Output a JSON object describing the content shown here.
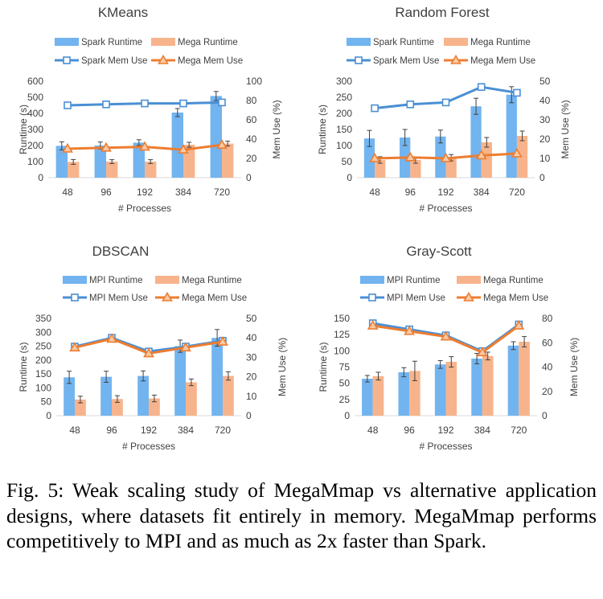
{
  "caption": "Fig. 5: Weak scaling study of MegaMmap vs alternative application designs, where datasets fit entirely in memory. MegaMmap performs competitively to MPI and as much as 2x faster than Spark.",
  "colors": {
    "bar_a": "#72b4ef",
    "bar_b": "#f7b48c",
    "line_a": "#4a8fd4",
    "line_b": "#ed7d31",
    "error": "#404040",
    "axis": "#d9d9d9",
    "text": "#404040"
  },
  "chart_data": [
    {
      "type": "bar",
      "title": "KMeans",
      "xlabel": "# Processes",
      "ylabel": "Runtime (s)",
      "y2label": "Mem Use (%)",
      "categories": [
        "48",
        "96",
        "192",
        "384",
        "720"
      ],
      "ylim": [
        0,
        600
      ],
      "yticks": [
        0,
        100,
        200,
        300,
        400,
        500,
        600
      ],
      "y2lim": [
        0,
        100
      ],
      "y2ticks": [
        0,
        20,
        40,
        60,
        80,
        100
      ],
      "series": [
        {
          "name": "Spark Runtime",
          "kind": "bar",
          "values": [
            198,
            200,
            218,
            405,
            508
          ],
          "errors": [
            25,
            22,
            18,
            25,
            28
          ]
        },
        {
          "name": "Mega Runtime",
          "kind": "bar",
          "values": [
            98,
            100,
            100,
            205,
            212
          ],
          "errors": [
            15,
            12,
            12,
            15,
            15
          ]
        },
        {
          "name": "Spark Mem Use",
          "kind": "line",
          "axis": "right",
          "marker": "square",
          "values": [
            75,
            76,
            77,
            77,
            78
          ]
        },
        {
          "name": "Mega Mem Use",
          "kind": "line",
          "axis": "right",
          "marker": "triangle",
          "values": [
            30,
            31,
            32,
            29,
            34
          ]
        }
      ]
    },
    {
      "type": "bar",
      "title": "Random Forest",
      "xlabel": "# Processes",
      "ylabel": "Runtime (s)",
      "y2label": "Mem Use (%)",
      "categories": [
        "48",
        "96",
        "192",
        "384",
        "720"
      ],
      "ylim": [
        0,
        300
      ],
      "yticks": [
        0,
        50,
        100,
        150,
        200,
        250,
        300
      ],
      "y2lim": [
        0,
        50
      ],
      "y2ticks": [
        0,
        10,
        20,
        30,
        40,
        50
      ],
      "series": [
        {
          "name": "Spark Runtime",
          "kind": "bar",
          "values": [
            122,
            125,
            128,
            222,
            258
          ],
          "errors": [
            25,
            25,
            20,
            25,
            25
          ]
        },
        {
          "name": "Mega Runtime",
          "kind": "bar",
          "values": [
            55,
            55,
            62,
            110,
            130
          ],
          "errors": [
            10,
            10,
            10,
            15,
            15
          ]
        },
        {
          "name": "Spark Mem Use",
          "kind": "line",
          "axis": "right",
          "marker": "square",
          "values": [
            36,
            38,
            39,
            47,
            44
          ]
        },
        {
          "name": "Mega Mem Use",
          "kind": "line",
          "axis": "right",
          "marker": "triangle",
          "values": [
            10,
            10.5,
            10,
            11.5,
            12.5
          ]
        }
      ]
    },
    {
      "type": "bar",
      "title": "DBSCAN",
      "xlabel": "# Processes",
      "ylabel": "Runtime (s)",
      "y2label": "Mem Use (%)",
      "categories": [
        "48",
        "96",
        "192",
        "384",
        "720"
      ],
      "ylim": [
        0,
        350
      ],
      "yticks": [
        0,
        50,
        100,
        150,
        200,
        250,
        300,
        350
      ],
      "y2lim": [
        0,
        50
      ],
      "y2ticks": [
        0,
        10,
        20,
        30,
        40,
        50
      ],
      "series": [
        {
          "name": "MPI Runtime",
          "kind": "bar",
          "values": [
            138,
            140,
            143,
            250,
            280
          ],
          "errors": [
            22,
            20,
            18,
            22,
            30
          ]
        },
        {
          "name": "Mega Runtime",
          "kind": "bar",
          "values": [
            58,
            60,
            62,
            120,
            143
          ],
          "errors": [
            12,
            12,
            12,
            12,
            15
          ]
        },
        {
          "name": "MPI Mem Use",
          "kind": "line",
          "axis": "right",
          "marker": "square",
          "values": [
            35.5,
            40,
            33,
            35.5,
            38.5
          ]
        },
        {
          "name": "Mega Mem Use",
          "kind": "line",
          "axis": "right",
          "marker": "triangle",
          "values": [
            35,
            39.5,
            32,
            35,
            38
          ]
        }
      ]
    },
    {
      "type": "bar",
      "title": "Gray-Scott",
      "xlabel": "# Processes",
      "ylabel": "Runtime (s)",
      "y2label": "Mem Use (%)",
      "categories": [
        "48",
        "96",
        "192",
        "384",
        "720"
      ],
      "ylim": [
        0,
        150
      ],
      "yticks": [
        0,
        25,
        50,
        75,
        100,
        125,
        150
      ],
      "y2lim": [
        0,
        80
      ],
      "y2ticks": [
        0,
        20,
        40,
        60,
        80
      ],
      "series": [
        {
          "name": "MPI Runtime",
          "kind": "bar",
          "values": [
            57,
            67,
            79,
            88,
            108
          ],
          "errors": [
            5,
            7,
            6,
            8,
            6
          ]
        },
        {
          "name": "Mega Runtime",
          "kind": "bar",
          "values": [
            61,
            69,
            83,
            92,
            114
          ],
          "errors": [
            6,
            15,
            8,
            6,
            8
          ]
        },
        {
          "name": "MPI Mem Use",
          "kind": "line",
          "axis": "right",
          "marker": "square",
          "values": [
            76,
            71,
            66,
            53,
            75
          ]
        },
        {
          "name": "Mega Mem Use",
          "kind": "line",
          "axis": "right",
          "marker": "triangle",
          "values": [
            74,
            69.5,
            65,
            52,
            74
          ]
        }
      ]
    }
  ]
}
